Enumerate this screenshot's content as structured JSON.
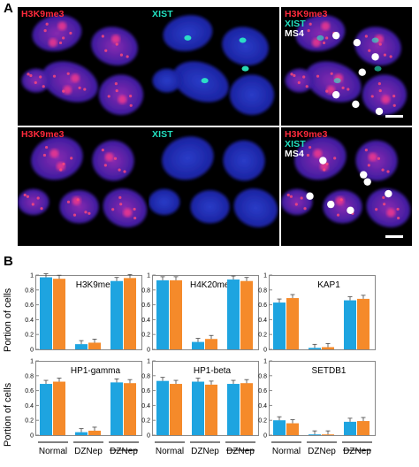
{
  "panel_a": {
    "letter": "A",
    "rows": [
      {
        "panels": [
          {
            "labels": [
              {
                "text": "H3K9me3",
                "color": "#ff2a3c"
              }
            ]
          },
          {
            "labels": [
              {
                "text": "XIST",
                "color": "#22e0c0"
              }
            ]
          },
          {
            "labels": [
              {
                "text": "H3K9me3",
                "color": "#ff2a3c"
              },
              {
                "text": "XIST",
                "color": "#22e0c0"
              },
              {
                "text": "MS4",
                "color": "#ffffff"
              }
            ]
          }
        ]
      },
      {
        "panels": [
          {
            "labels": [
              {
                "text": "H3K9me3",
                "color": "#ff2a3c"
              }
            ]
          },
          {
            "labels": [
              {
                "text": "XIST",
                "color": "#22e0c0"
              }
            ]
          },
          {
            "labels": [
              {
                "text": "H3K9me3",
                "color": "#ff2a3c"
              },
              {
                "text": "XIST",
                "color": "#22e0c0"
              },
              {
                "text": "MS4",
                "color": "#ffffff"
              }
            ]
          }
        ]
      }
    ]
  },
  "panel_b": {
    "letter": "B",
    "ylabel": "Portion of cells",
    "colors": {
      "series1": "#1ea4e0",
      "series2": "#f58a2a"
    }
  },
  "chart_data": [
    {
      "type": "bar",
      "title": "H3K9me3",
      "categories": [
        "Normal",
        "DZNep",
        "DZNep"
      ],
      "ylim": [
        0,
        1
      ],
      "yticks": [
        0,
        0.2,
        0.4,
        0.6,
        0.8,
        1
      ],
      "series": [
        {
          "values": [
            0.97,
            0.07,
            0.92
          ]
        },
        {
          "values": [
            0.95,
            0.09,
            0.96
          ]
        }
      ]
    },
    {
      "type": "bar",
      "title": "H4K20me3",
      "categories": [
        "Normal",
        "DZNep",
        "DZNep"
      ],
      "ylim": [
        0,
        1
      ],
      "yticks": [
        0,
        0.2,
        0.4,
        0.6,
        0.8,
        1
      ],
      "series": [
        {
          "values": [
            0.93,
            0.1,
            0.94
          ]
        },
        {
          "values": [
            0.93,
            0.14,
            0.92
          ]
        }
      ]
    },
    {
      "type": "bar",
      "title": "KAP1",
      "categories": [
        "Normal",
        "DZNep",
        "DZNep"
      ],
      "ylim": [
        0,
        1
      ],
      "yticks": [
        0,
        0.2,
        0.4,
        0.6,
        0.8,
        1
      ],
      "series": [
        {
          "values": [
            0.63,
            0.02,
            0.66
          ]
        },
        {
          "values": [
            0.69,
            0.03,
            0.68
          ]
        }
      ]
    },
    {
      "type": "bar",
      "title": "HP1-gamma",
      "categories": [
        "Normal",
        "DZNep",
        "DZNep"
      ],
      "ylim": [
        0,
        1
      ],
      "yticks": [
        0,
        0.2,
        0.4,
        0.6,
        0.8,
        1
      ],
      "series": [
        {
          "values": [
            0.69,
            0.04,
            0.71
          ]
        },
        {
          "values": [
            0.72,
            0.06,
            0.7
          ]
        }
      ]
    },
    {
      "type": "bar",
      "title": "HP1-beta",
      "categories": [
        "Normal",
        "DZNep",
        "DZNep"
      ],
      "ylim": [
        0,
        1
      ],
      "yticks": [
        0,
        0.2,
        0.4,
        0.6,
        0.8,
        1
      ],
      "series": [
        {
          "values": [
            0.73,
            0.72,
            0.69
          ]
        },
        {
          "values": [
            0.69,
            0.68,
            0.7
          ]
        }
      ]
    },
    {
      "type": "bar",
      "title": "SETDB1",
      "categories": [
        "Normal",
        "DZNep",
        "DZNep"
      ],
      "ylim": [
        0,
        1
      ],
      "yticks": [
        0,
        0.2,
        0.4,
        0.6,
        0.8,
        1
      ],
      "series": [
        {
          "values": [
            0.2,
            0.01,
            0.18
          ]
        },
        {
          "values": [
            0.16,
            0.01,
            0.19
          ]
        }
      ]
    }
  ]
}
